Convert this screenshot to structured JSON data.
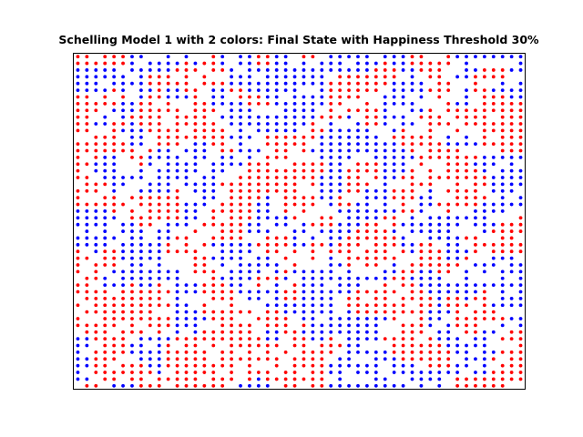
{
  "chart_data": {
    "type": "scatter",
    "title": "Schelling Model 1 with 2 colors: Final State with Happiness Threshold 30%",
    "xlabel": "",
    "ylabel": "",
    "xlim": [
      -0.5,
      49.5
    ],
    "ylim": [
      -0.5,
      49.5
    ],
    "grid": false,
    "axes_ticks": false,
    "legend": "none",
    "series": [
      {
        "color": "#ff0000",
        "marker": "dot"
      },
      {
        "color": "#0000ff",
        "marker": "dot"
      }
    ]
  }
}
